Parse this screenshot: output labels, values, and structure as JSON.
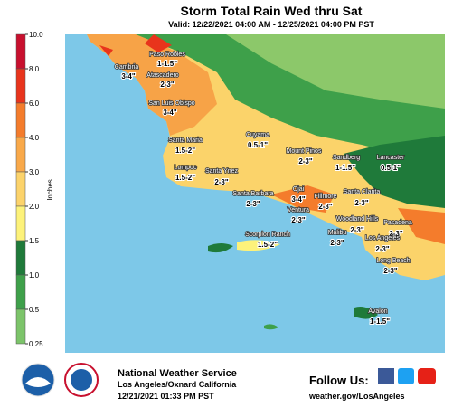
{
  "header": {
    "title": "Storm Total Rain Wed thru Sat",
    "subtitle": "Valid: 12/22/2021 04:00 AM - 12/25/2021 04:00 PM PST"
  },
  "legend": {
    "label": "Inches",
    "ticks": [
      {
        "value": 10,
        "label": "10.0"
      },
      {
        "value": 8,
        "label": "8.0"
      },
      {
        "value": 6,
        "label": "6.0"
      },
      {
        "value": 4,
        "label": "4.0"
      },
      {
        "value": 3,
        "label": "3.0"
      },
      {
        "value": 2,
        "label": "2.0"
      },
      1.5,
      {
        "value": 1,
        "label": "1.0"
      },
      0.5,
      0.25
    ],
    "colors": [
      "#c8102e",
      "#e8341c",
      "#f47c2c",
      "#f9a94a",
      "#fcd36b",
      "#fdf27a",
      "#1f7a3a",
      "#3ea04a",
      "#7cc46a"
    ]
  },
  "places": [
    {
      "name": "Paso Robles",
      "amount": "1-1.5\""
    },
    {
      "name": "Cambria",
      "amount": "3-4\""
    },
    {
      "name": "Atascadero",
      "amount": "2-3\""
    },
    {
      "name": "San Luis Obispo",
      "amount": "3-4\""
    },
    {
      "name": "Cuyama",
      "amount": "0.5-1\""
    },
    {
      "name": "Mount Pinos",
      "amount": "2-3\""
    },
    {
      "name": "Sandberg",
      "amount": "1-1.5\""
    },
    {
      "name": "Lancaster",
      "amount": "0.5-1\""
    },
    {
      "name": "Santa Maria",
      "amount": "1.5-2\""
    },
    {
      "name": "Lompoc",
      "amount": "1.5-2\""
    },
    {
      "name": "Santa Ynez",
      "amount": "2-3\""
    },
    {
      "name": "Santa Barbara",
      "amount": "2-3\""
    },
    {
      "name": "Ojai",
      "amount": "3-4\""
    },
    {
      "name": "Fillmore",
      "amount": "2-3\""
    },
    {
      "name": "Santa Clarita",
      "amount": "2-3\""
    },
    {
      "name": "Ventura",
      "amount": "2-3\""
    },
    {
      "name": "Woodland Hills",
      "amount": "2-3\""
    },
    {
      "name": "Pasadena",
      "amount": "2-3\""
    },
    {
      "name": "Malibu",
      "amount": "2-3\""
    },
    {
      "name": "Los Angeles",
      "amount": "2-3\""
    },
    {
      "name": "Scorpion Ranch",
      "amount": "1.5-2\""
    },
    {
      "name": "Long Beach",
      "amount": "2-3\""
    },
    {
      "name": "Avalon",
      "amount": "1-1.5\""
    }
  ],
  "footer": {
    "agency": "National Weather Service",
    "office": "Los Angeles/Oxnard California",
    "issued": "12/21/2021 01:33 PM PST",
    "follow": "Follow Us:",
    "url": "weather.gov/LosAngeles"
  }
}
